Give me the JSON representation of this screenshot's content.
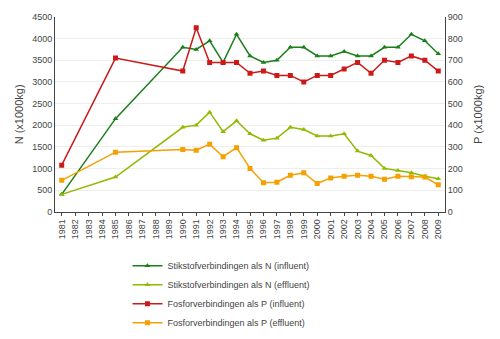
{
  "chart_data": {
    "type": "line",
    "x": [
      1981,
      1985,
      1990,
      1991,
      1992,
      1993,
      1994,
      1995,
      1996,
      1997,
      1998,
      1999,
      2000,
      2001,
      2002,
      2003,
      2004,
      2005,
      2006,
      2007,
      2008,
      2009
    ],
    "series": [
      {
        "name": "Stikstofverbindingen als N (influent)",
        "color": "#1a7f1a",
        "marker": "triangle",
        "axis": "y",
        "values": [
          400,
          2150,
          3800,
          3750,
          3950,
          3450,
          4100,
          3600,
          3450,
          3500,
          3800,
          3800,
          3600,
          3600,
          3700,
          3600,
          3600,
          3800,
          3800,
          4100,
          3950,
          3650
        ]
      },
      {
        "name": "Stikstofverbindingen als N (effluent)",
        "color": "#8fba00",
        "marker": "triangle",
        "axis": "y",
        "values": [
          400,
          800,
          1950,
          2000,
          2300,
          1850,
          2100,
          1800,
          1650,
          1700,
          1950,
          1900,
          1750,
          1750,
          1800,
          1400,
          1300,
          1000,
          950,
          900,
          820,
          760
        ]
      },
      {
        "name": "Fosforverbindingen als P (influent)",
        "color": "#cc1a1a",
        "marker": "square",
        "axis": "y2",
        "values": [
          215,
          710,
          650,
          850,
          690,
          690,
          690,
          640,
          650,
          630,
          630,
          600,
          630,
          630,
          660,
          690,
          640,
          700,
          690,
          720,
          700,
          650
        ]
      },
      {
        "name": "Fosforverbindingen als P (effluent)",
        "color": "#f5a000",
        "marker": "square",
        "axis": "y2",
        "values": [
          145,
          275,
          288,
          284,
          312,
          254,
          296,
          200,
          134,
          136,
          168,
          180,
          130,
          156,
          164,
          168,
          164,
          150,
          164,
          162,
          160,
          124
        ]
      }
    ],
    "xlim": [
      1980.5,
      2009.5
    ],
    "xticks": [
      1981,
      1982,
      1983,
      1984,
      1985,
      1986,
      1987,
      1988,
      1989,
      1990,
      1991,
      1992,
      1993,
      1994,
      1995,
      1996,
      1997,
      1998,
      1999,
      2000,
      2001,
      2002,
      2003,
      2004,
      2005,
      2006,
      2007,
      2008,
      2009
    ],
    "ylim": [
      0,
      4500
    ],
    "yticks": [
      0,
      500,
      1000,
      1500,
      2000,
      2500,
      3000,
      3500,
      4000,
      4500
    ],
    "y2lim": [
      0,
      900
    ],
    "y2ticks": [
      0,
      100,
      200,
      300,
      400,
      500,
      600,
      700,
      800,
      900
    ],
    "ylabel": "N (x1000kg)",
    "y2label": "P (x1000kg)",
    "grid": true,
    "legend": "bottom"
  }
}
